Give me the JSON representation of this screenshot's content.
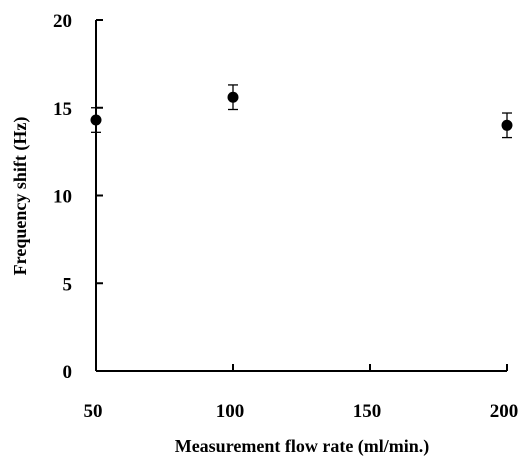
{
  "chart_data": {
    "type": "scatter",
    "title": "",
    "xlabel": "Measurement flow rate (ml/min.)",
    "ylabel": "Frequency shift (Hz)",
    "xlim": [
      50,
      200
    ],
    "ylim": [
      0,
      20
    ],
    "x_ticks": [
      50,
      100,
      150,
      200
    ],
    "y_ticks": [
      0,
      5,
      10,
      15,
      20
    ],
    "x_tick_labels": [
      "50",
      "100",
      "150",
      "200"
    ],
    "y_tick_labels": [
      "0",
      "5",
      "10",
      "15",
      "20"
    ],
    "grid": false,
    "legend": "none",
    "series": [
      {
        "x": [
          50,
          100,
          200
        ],
        "y": [
          14.3,
          15.6,
          14.0
        ],
        "error": [
          0.7,
          0.7,
          0.7
        ]
      }
    ],
    "colors": {
      "marker": "#000000",
      "axis": "#000000",
      "background": "#ffffff"
    }
  }
}
